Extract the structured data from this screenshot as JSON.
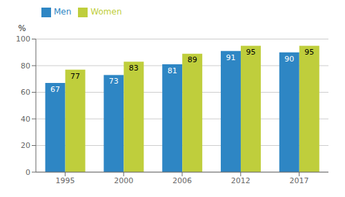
{
  "chart_data": {
    "type": "bar",
    "ylabel": "%",
    "categories": [
      "1995",
      "2000",
      "2006",
      "2012",
      "2017"
    ],
    "series": [
      {
        "name": "Men",
        "color": "#2E86C4",
        "values": [
          67,
          73,
          81,
          91,
          90
        ]
      },
      {
        "name": "Women",
        "color": "#BFCE3C",
        "values": [
          77,
          83,
          89,
          95,
          95
        ]
      }
    ],
    "ylim": [
      0,
      100
    ],
    "yticks": [
      0,
      20,
      40,
      60,
      80,
      100
    ],
    "grid": true,
    "legend": "upper left",
    "data_labels": true
  }
}
